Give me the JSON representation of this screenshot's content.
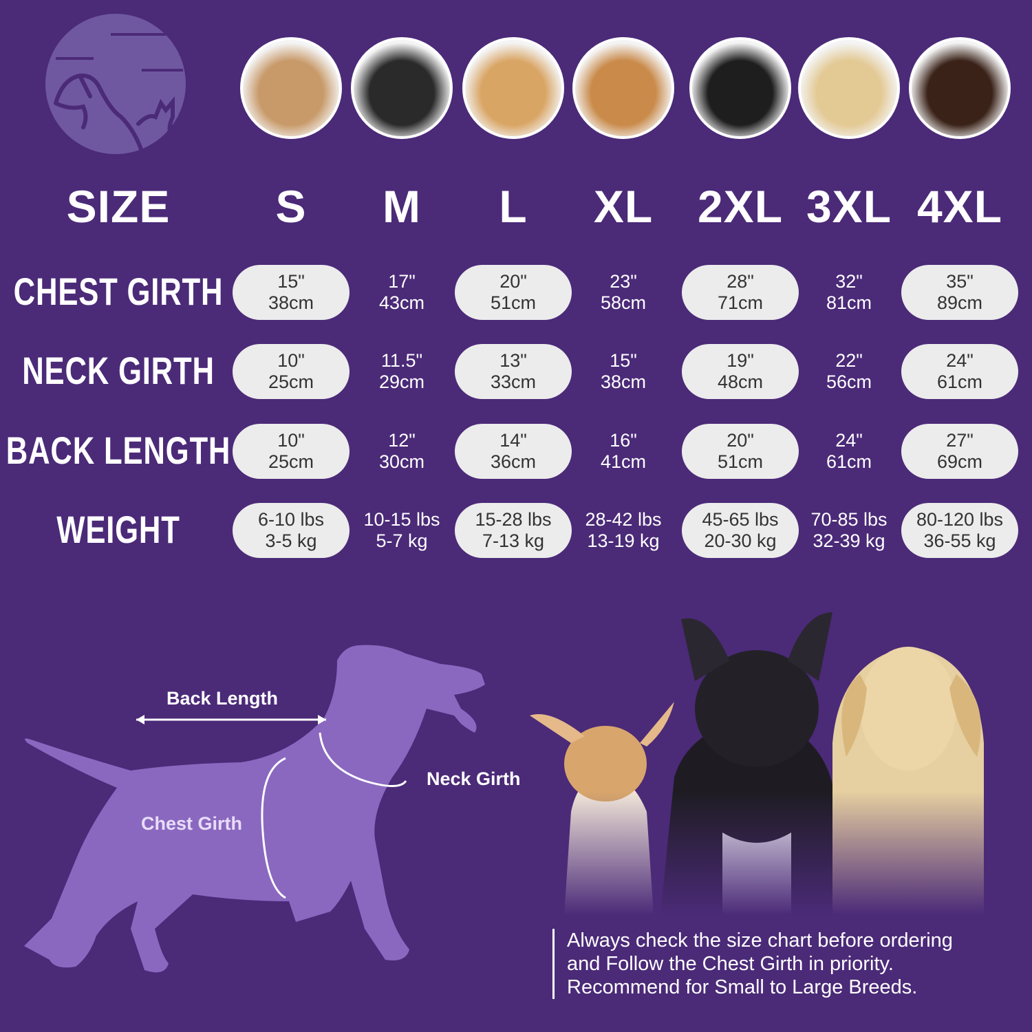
{
  "colors": {
    "background": "#4b2a78",
    "pill": "#ececec",
    "silhouette": "#8b68c0",
    "logo_circle": "#6f58a0"
  },
  "logo": {
    "icon": "dog-and-cat-logo"
  },
  "breeds": [
    {
      "icon": "shih-tzu-photo",
      "color": "#c89a6a"
    },
    {
      "icon": "boston-terrier-photo",
      "color": "#2a2a2a"
    },
    {
      "icon": "cocker-spaniel-photo",
      "color": "#d9a565"
    },
    {
      "icon": "beagle-photo",
      "color": "#c98a4a"
    },
    {
      "icon": "border-collie-photo",
      "color": "#1e1e1e"
    },
    {
      "icon": "labrador-photo",
      "color": "#e3c994"
    },
    {
      "icon": "doberman-photo",
      "color": "#3a2218"
    }
  ],
  "table": {
    "size_label": "SIZE",
    "sizes": [
      "S",
      "M",
      "L",
      "XL",
      "2XL",
      "3XL",
      "4XL"
    ],
    "rows": [
      {
        "label": "CHEST GIRTH",
        "values": [
          [
            "15\"",
            "38cm"
          ],
          [
            "17\"",
            "43cm"
          ],
          [
            "20\"",
            "51cm"
          ],
          [
            "23\"",
            "58cm"
          ],
          [
            "28\"",
            "71cm"
          ],
          [
            "32\"",
            "81cm"
          ],
          [
            "35\"",
            "89cm"
          ]
        ]
      },
      {
        "label": "NECK GIRTH",
        "values": [
          [
            "10\"",
            "25cm"
          ],
          [
            "11.5\"",
            "29cm"
          ],
          [
            "13\"",
            "33cm"
          ],
          [
            "15\"",
            "38cm"
          ],
          [
            "19\"",
            "48cm"
          ],
          [
            "22\"",
            "56cm"
          ],
          [
            "24\"",
            "61cm"
          ]
        ]
      },
      {
        "label": "BACK LENGTH",
        "values": [
          [
            "10\"",
            "25cm"
          ],
          [
            "12\"",
            "30cm"
          ],
          [
            "14\"",
            "36cm"
          ],
          [
            "16\"",
            "41cm"
          ],
          [
            "20\"",
            "51cm"
          ],
          [
            "24\"",
            "61cm"
          ],
          [
            "27\"",
            "69cm"
          ]
        ]
      },
      {
        "label": "WEIGHT",
        "values": [
          [
            "6-10 lbs",
            "3-5 kg"
          ],
          [
            "10-15 lbs",
            "5-7 kg"
          ],
          [
            "15-28 lbs",
            "7-13 kg"
          ],
          [
            "28-42 lbs",
            "13-19 kg"
          ],
          [
            "45-65 lbs",
            "20-30 kg"
          ],
          [
            "70-85 lbs",
            "32-39 kg"
          ],
          [
            "80-120 lbs",
            "36-55 kg"
          ]
        ]
      }
    ]
  },
  "diagram": {
    "back_length": "Back Length",
    "neck_girth": "Neck Girth",
    "chest_girth": "Chest Girth"
  },
  "note": {
    "lines": [
      "Always check the size chart before ordering",
      "and Follow the Chest Girth in priority.",
      "Recommend for Small to Large Breeds."
    ]
  }
}
